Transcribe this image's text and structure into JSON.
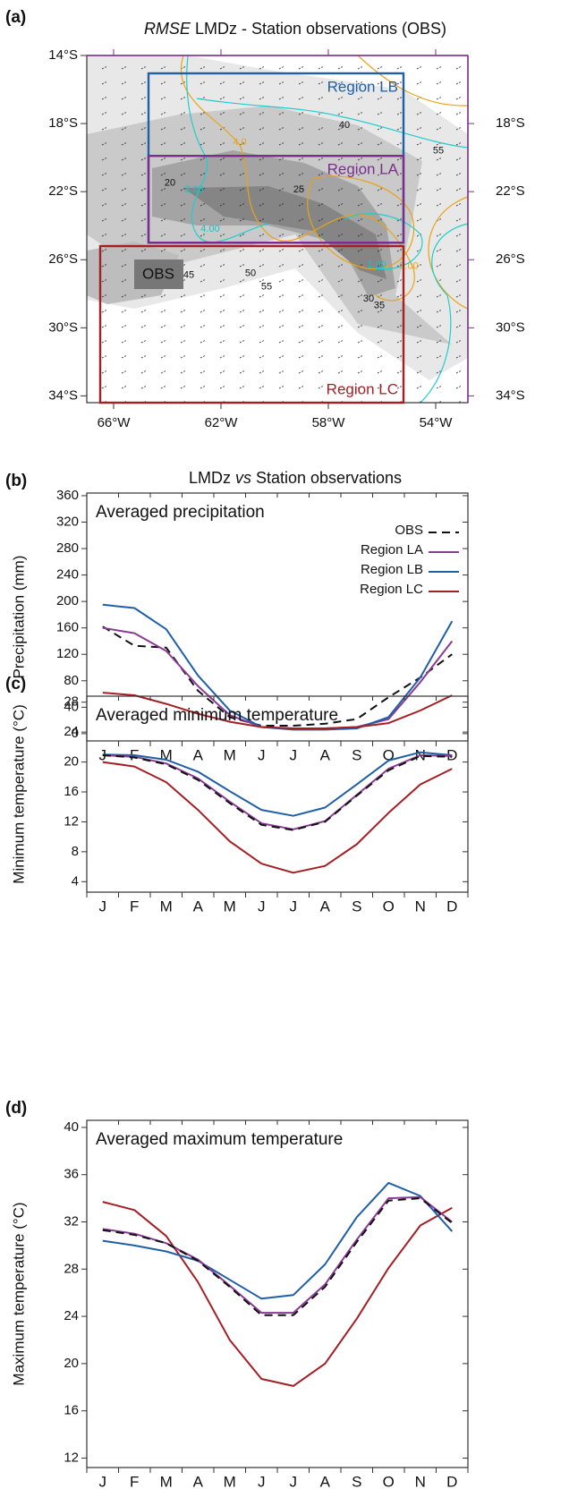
{
  "chart_data": [
    {
      "type": "map",
      "panel_label": "(a)",
      "title": [
        {
          "text": "RMSE",
          "italic": true
        },
        {
          "text": "LMDz - Station observations (OBS)",
          "italic": false
        }
      ],
      "xlim": [
        -67,
        -52.8
      ],
      "ylim": [
        -34.4,
        -14
      ],
      "xticks": [
        {
          "value": -66,
          "label": "66°W"
        },
        {
          "value": -62,
          "label": "62°W"
        },
        {
          "value": -58,
          "label": "58°W"
        },
        {
          "value": -54,
          "label": "54°W"
        }
      ],
      "yticks": [
        {
          "value": -14,
          "label": "14°S"
        },
        {
          "value": -18,
          "label": "18°S"
        },
        {
          "value": -22,
          "label": "22°S"
        },
        {
          "value": -26,
          "label": "26°S"
        },
        {
          "value": -30,
          "label": "30°S"
        },
        {
          "value": -34,
          "label": "34°S"
        }
      ],
      "y2ticks": [
        {
          "value": -18,
          "label": "18°S"
        },
        {
          "value": -22,
          "label": "22°S"
        },
        {
          "value": -26,
          "label": "26°S"
        },
        {
          "value": -30,
          "label": "30°S"
        },
        {
          "value": -34,
          "label": "34°S"
        }
      ],
      "regions": [
        {
          "name": "Region LB",
          "color": "#1f5fa6",
          "lon": [
            -64.7,
            -55.2
          ],
          "lat": [
            -25,
            -15.05
          ]
        },
        {
          "name": "Region LA",
          "color": "#7b2d8e",
          "lon": [
            -64.7,
            -55.2
          ],
          "lat": [
            -25,
            -19.9
          ]
        },
        {
          "name": "Region LC",
          "color": "#a31f24",
          "lon": [
            -66.5,
            -55.2
          ],
          "lat": [
            -34.4,
            -25.2
          ]
        }
      ],
      "station_label": "OBS",
      "contour_labels": [
        {
          "text": "20",
          "lon": -63.9,
          "lat": -21.5,
          "color": "#111"
        },
        {
          "text": "25",
          "lon": -59.1,
          "lat": -21.9,
          "color": "#111"
        },
        {
          "text": "40",
          "lon": -57.4,
          "lat": -18.1,
          "color": "#111"
        },
        {
          "text": "55",
          "lon": -53.9,
          "lat": -19.6,
          "color": "#111"
        },
        {
          "text": "45",
          "lon": -63.2,
          "lat": -26.9,
          "color": "#111"
        },
        {
          "text": "50",
          "lon": -60.9,
          "lat": -26.8,
          "color": "#111"
        },
        {
          "text": "55",
          "lon": -60.3,
          "lat": -27.6,
          "color": "#111"
        },
        {
          "text": "30",
          "lon": -56.5,
          "lat": -28.3,
          "color": "#111"
        },
        {
          "text": "35",
          "lon": -56.1,
          "lat": -28.7,
          "color": "#111"
        },
        {
          "text": "3.00",
          "lon": -63.0,
          "lat": -21.9,
          "color": "#1fbfbf"
        },
        {
          "text": "4.00",
          "lon": -62.4,
          "lat": -24.2,
          "color": "#1fbfbf"
        },
        {
          "text": "1.00",
          "lon": -56.2,
          "lat": -26.3,
          "color": "#1fbfbf"
        },
        {
          "text": "3.00",
          "lon": -55.0,
          "lat": -26.4,
          "color": "#e8a317"
        },
        {
          "text": "4.0",
          "lon": -61.3,
          "lat": -19.1,
          "color": "#e8a317"
        }
      ]
    },
    {
      "type": "line",
      "panel_label": "(b)",
      "title": [
        {
          "text": "LMDz",
          "italic": false
        },
        {
          "text": "vs",
          "italic": true
        },
        {
          "text": "Station observations",
          "italic": false
        }
      ],
      "subtitle": "Averaged precipitation",
      "y_label": "Precipitation (mm)",
      "categories": [
        "J",
        "F",
        "M",
        "A",
        "M",
        "J",
        "J",
        "A",
        "S",
        "O",
        "N",
        "D"
      ],
      "ylim": [
        -11,
        364
      ],
      "yticks": [
        0,
        40,
        80,
        120,
        160,
        200,
        240,
        280,
        320,
        360
      ],
      "legend": "upper right",
      "series": [
        {
          "name": "OBS",
          "color": "#111111",
          "dash": true,
          "values": [
            162,
            133,
            130,
            65,
            25,
            12,
            12,
            15,
            22,
            55,
            85,
            120
          ]
        },
        {
          "name": "Region LA",
          "color": "#8b3a96",
          "dash": false,
          "values": [
            160,
            152,
            125,
            72,
            28,
            10,
            8,
            8,
            10,
            22,
            78,
            140
          ]
        },
        {
          "name": "Region LB",
          "color": "#1f5fa6",
          "dash": false,
          "values": [
            195,
            190,
            158,
            88,
            35,
            10,
            6,
            6,
            8,
            25,
            85,
            170
          ]
        },
        {
          "name": "Region LC",
          "color": "#a31f24",
          "dash": false,
          "values": [
            62,
            58,
            45,
            30,
            18,
            10,
            8,
            8,
            10,
            16,
            35,
            58
          ]
        }
      ]
    },
    {
      "type": "line",
      "panel_label": "(c)",
      "subtitle": "Averaged minimum temperature",
      "y_label": "Minimum temperature (°C)",
      "categories": [
        "J",
        "F",
        "M",
        "A",
        "M",
        "J",
        "J",
        "A",
        "S",
        "O",
        "N",
        "D"
      ],
      "ylim": [
        2.6,
        28.8
      ],
      "yticks": [
        4,
        8,
        12,
        16,
        20,
        24,
        28
      ],
      "series": [
        {
          "color": "#a31f24",
          "dash": false,
          "values": [
            20.0,
            19.4,
            17.3,
            13.6,
            9.4,
            6.4,
            5.2,
            6.1,
            9.0,
            13.2,
            17.0,
            19.1
          ]
        },
        {
          "color": "#1f5fa6",
          "dash": false,
          "values": [
            21.0,
            20.9,
            20.3,
            18.7,
            16.1,
            13.6,
            12.8,
            13.9,
            17.0,
            20.2,
            21.3,
            20.9
          ]
        },
        {
          "color": "#8b3a96",
          "dash": false,
          "values": [
            20.9,
            20.7,
            19.8,
            17.8,
            14.7,
            11.8,
            11.0,
            12.1,
            15.6,
            19.1,
            20.9,
            20.8
          ]
        },
        {
          "color": "#111111",
          "dash": true,
          "values": [
            20.9,
            20.6,
            19.7,
            17.6,
            14.5,
            11.6,
            10.9,
            12.0,
            15.5,
            18.9,
            20.8,
            20.7
          ]
        }
      ]
    },
    {
      "type": "line",
      "panel_label": "(d)",
      "subtitle": "Averaged maximum temperature",
      "y_label": "Maximum temperature (°C)",
      "categories": [
        "J",
        "F",
        "M",
        "A",
        "M",
        "J",
        "J",
        "A",
        "S",
        "O",
        "N",
        "D"
      ],
      "ylim": [
        11.2,
        40.6
      ],
      "yticks": [
        12,
        16,
        20,
        24,
        28,
        32,
        36,
        40
      ],
      "series": [
        {
          "color": "#a31f24",
          "dash": false,
          "values": [
            33.7,
            33.0,
            30.8,
            26.9,
            22.0,
            18.7,
            18.1,
            20.0,
            23.8,
            28.1,
            31.7,
            33.2
          ]
        },
        {
          "color": "#1f5fa6",
          "dash": false,
          "values": [
            30.4,
            30.0,
            29.5,
            28.7,
            27.1,
            25.5,
            25.8,
            28.4,
            32.4,
            35.3,
            34.2,
            31.2
          ]
        },
        {
          "color": "#8b3a96",
          "dash": false,
          "values": [
            31.4,
            31.0,
            30.2,
            28.8,
            26.6,
            24.3,
            24.3,
            26.7,
            30.5,
            34.0,
            34.1,
            32.0
          ]
        },
        {
          "color": "#111111",
          "dash": true,
          "values": [
            31.3,
            30.9,
            30.2,
            28.7,
            26.5,
            24.1,
            24.1,
            26.5,
            30.3,
            33.8,
            34.0,
            31.9
          ]
        }
      ]
    }
  ]
}
